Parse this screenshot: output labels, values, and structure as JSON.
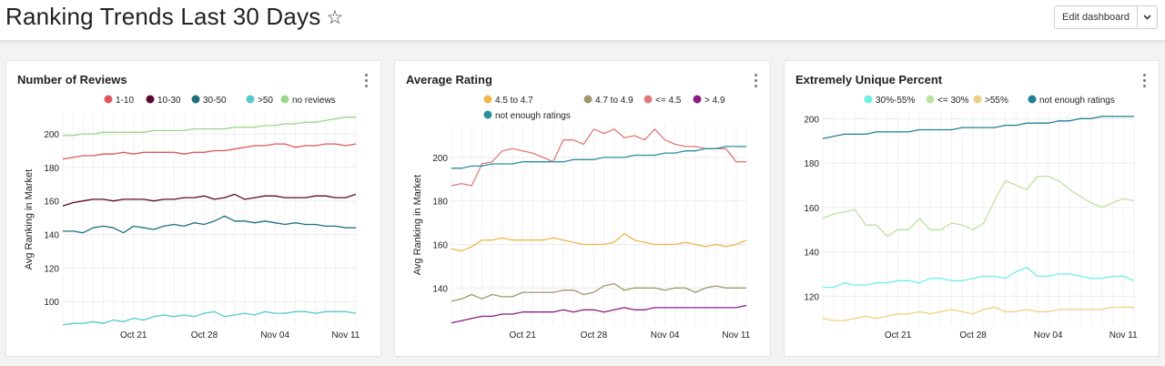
{
  "header": {
    "title": "Ranking Trends Last 30 Days",
    "star_icon": "star-outline-icon",
    "edit_label": "Edit dashboard",
    "dropdown_icon": "chevron-down-icon"
  },
  "panels": [
    {
      "title": "Number of Reviews"
    },
    {
      "title": "Average Rating"
    },
    {
      "title": "Extremely Unique Percent"
    }
  ],
  "chart_data": [
    {
      "type": "line",
      "title": "Number of Reviews",
      "ylabel": "Avg Ranking in Market",
      "xlabel": "",
      "ylim": [
        86,
        212
      ],
      "yticks": [
        100,
        120,
        140,
        160,
        180,
        200
      ],
      "xticks": [
        "Oct 21",
        "Oct 28",
        "Nov 04",
        "Nov 11"
      ],
      "x": [
        "Oct 14",
        "Oct 15",
        "Oct 16",
        "Oct 17",
        "Oct 18",
        "Oct 19",
        "Oct 20",
        "Oct 21",
        "Oct 22",
        "Oct 23",
        "Oct 24",
        "Oct 25",
        "Oct 26",
        "Oct 27",
        "Oct 28",
        "Oct 29",
        "Oct 30",
        "Oct 31",
        "Nov 01",
        "Nov 02",
        "Nov 03",
        "Nov 04",
        "Nov 05",
        "Nov 06",
        "Nov 07",
        "Nov 08",
        "Nov 09",
        "Nov 10",
        "Nov 11",
        "Nov 12"
      ],
      "legend": "top",
      "grid": true,
      "series": [
        {
          "name": "1-10",
          "color": "#e0585b",
          "values": [
            185,
            186,
            187,
            187,
            188,
            188,
            189,
            188,
            189,
            189,
            189,
            189,
            188,
            189,
            189,
            190,
            190,
            191,
            192,
            193,
            193,
            194,
            194,
            192,
            193,
            193,
            194,
            194,
            193,
            194
          ]
        },
        {
          "name": "10-30",
          "color": "#5c0a2e",
          "values": [
            157,
            159,
            160,
            161,
            161,
            160,
            161,
            161,
            161,
            160,
            161,
            161,
            162,
            162,
            163,
            161,
            162,
            164,
            161,
            162,
            163,
            163,
            162,
            162,
            162,
            163,
            163,
            162,
            162,
            164
          ]
        },
        {
          "name": "30-50",
          "color": "#1f6f7f",
          "values": [
            142,
            142,
            141,
            144,
            145,
            144,
            141,
            145,
            144,
            143,
            145,
            146,
            145,
            147,
            146,
            148,
            151,
            148,
            148,
            147,
            148,
            147,
            146,
            147,
            146,
            146,
            145,
            145,
            144,
            144
          ]
        },
        {
          "name": ">50",
          "color": "#55cbc8",
          "values": [
            86,
            87,
            87,
            88,
            87,
            89,
            88,
            90,
            89,
            91,
            92,
            91,
            92,
            91,
            93,
            94,
            91,
            92,
            93,
            92,
            94,
            93,
            93,
            94,
            94,
            93,
            94,
            94,
            94,
            93
          ]
        },
        {
          "name": "no reviews",
          "color": "#98d88a",
          "values": [
            199,
            199,
            200,
            200,
            201,
            201,
            201,
            201,
            201,
            202,
            202,
            202,
            202,
            203,
            203,
            203,
            203,
            204,
            204,
            204,
            205,
            205,
            206,
            206,
            207,
            207,
            208,
            209,
            210,
            210
          ]
        }
      ]
    },
    {
      "type": "line",
      "title": "Average Rating",
      "ylabel": "Avg Ranking in Market",
      "xlabel": "",
      "ylim": [
        123,
        215
      ],
      "yticks": [
        140,
        160,
        180,
        200
      ],
      "xticks": [
        "Oct 21",
        "Oct 28",
        "Nov 04",
        "Nov 11"
      ],
      "x": [
        "Oct 14",
        "Oct 15",
        "Oct 16",
        "Oct 17",
        "Oct 18",
        "Oct 19",
        "Oct 20",
        "Oct 21",
        "Oct 22",
        "Oct 23",
        "Oct 24",
        "Oct 25",
        "Oct 26",
        "Oct 27",
        "Oct 28",
        "Oct 29",
        "Oct 30",
        "Oct 31",
        "Nov 01",
        "Nov 02",
        "Nov 03",
        "Nov 04",
        "Nov 05",
        "Nov 06",
        "Nov 07",
        "Nov 08",
        "Nov 09",
        "Nov 10",
        "Nov 11",
        "Nov 12"
      ],
      "legend": "top",
      "grid": true,
      "series": [
        {
          "name": "4.5 to 4.7",
          "color": "#f0b64b",
          "values": [
            158,
            157,
            159,
            162,
            162,
            163,
            162,
            162,
            162,
            162,
            163,
            162,
            161,
            160,
            160,
            160,
            161,
            165,
            162,
            161,
            160,
            160,
            160,
            161,
            160,
            159,
            160,
            159,
            160,
            162
          ]
        },
        {
          "name": "4.7 to 4.9",
          "color": "#a3956a",
          "values": [
            134,
            135,
            137,
            135,
            137,
            136,
            136,
            138,
            138,
            138,
            138,
            139,
            139,
            137,
            138,
            141,
            142,
            139,
            140,
            140,
            140,
            139,
            140,
            140,
            138,
            140,
            141,
            140,
            140,
            140
          ]
        },
        {
          "name": "<= 4.5",
          "color": "#e07a7a",
          "values": [
            187,
            188,
            187,
            197,
            198,
            203,
            204,
            203,
            202,
            200,
            198,
            208,
            208,
            206,
            213,
            211,
            213,
            209,
            210,
            208,
            213,
            208,
            206,
            205,
            205,
            204,
            204,
            204,
            198,
            198
          ]
        },
        {
          "name": "> 4.9",
          "color": "#8b1e83",
          "values": [
            124,
            125,
            126,
            127,
            127,
            128,
            128,
            129,
            129,
            129,
            129,
            130,
            129,
            130,
            130,
            129,
            130,
            131,
            130,
            130,
            131,
            131,
            131,
            131,
            131,
            131,
            131,
            131,
            131,
            132
          ]
        },
        {
          "name": "not enough ratings",
          "color": "#2c8fa0",
          "values": [
            195,
            195,
            196,
            196,
            197,
            197,
            197,
            198,
            198,
            198,
            198,
            198,
            199,
            199,
            199,
            200,
            200,
            200,
            201,
            201,
            201,
            202,
            202,
            203,
            203,
            204,
            204,
            205,
            205,
            205
          ]
        }
      ]
    },
    {
      "type": "line",
      "title": "Extremely Unique Percent",
      "ylabel": "",
      "xlabel": "",
      "ylim": [
        107,
        203
      ],
      "yticks": [
        120,
        140,
        160,
        180,
        200
      ],
      "xticks": [
        "Oct 21",
        "Oct 28",
        "Nov 04",
        "Nov 11"
      ],
      "x": [
        "Oct 14",
        "Oct 15",
        "Oct 16",
        "Oct 17",
        "Oct 18",
        "Oct 19",
        "Oct 20",
        "Oct 21",
        "Oct 22",
        "Oct 23",
        "Oct 24",
        "Oct 25",
        "Oct 26",
        "Oct 27",
        "Oct 28",
        "Oct 29",
        "Oct 30",
        "Oct 31",
        "Nov 01",
        "Nov 02",
        "Nov 03",
        "Nov 04",
        "Nov 05",
        "Nov 06",
        "Nov 07",
        "Nov 08",
        "Nov 09",
        "Nov 10",
        "Nov 11",
        "Nov 12"
      ],
      "legend": "top",
      "grid": true,
      "series": [
        {
          "name": "30%-55%",
          "color": "#6ff0e3",
          "values": [
            124,
            124,
            126,
            125,
            125,
            126,
            126,
            127,
            127,
            126,
            128,
            128,
            127,
            127,
            128,
            129,
            129,
            128,
            131,
            133,
            129,
            129,
            130,
            130,
            129,
            128,
            128,
            129,
            129,
            127
          ]
        },
        {
          "name": "<= 30%",
          "color": "#bde3a0",
          "values": [
            155,
            157,
            158,
            159,
            152,
            152,
            147,
            150,
            150,
            155,
            150,
            150,
            153,
            152,
            150,
            153,
            163,
            172,
            170,
            168,
            174,
            174,
            172,
            168,
            165,
            162,
            160,
            162,
            164,
            163
          ]
        },
        {
          "name": ">55%",
          "color": "#f0d080",
          "values": [
            110,
            109,
            109,
            110,
            111,
            110,
            111,
            112,
            112,
            113,
            112,
            113,
            114,
            113,
            112,
            114,
            115,
            113,
            113,
            114,
            113,
            113,
            114,
            114,
            114,
            114,
            114,
            115,
            115,
            115
          ]
        },
        {
          "name": "not enough ratings",
          "color": "#1f7f95",
          "values": [
            191,
            192,
            193,
            193,
            193,
            194,
            194,
            194,
            194,
            195,
            195,
            195,
            195,
            196,
            196,
            196,
            196,
            197,
            197,
            198,
            198,
            198,
            199,
            199,
            200,
            200,
            201,
            201,
            201,
            201
          ]
        }
      ]
    }
  ]
}
